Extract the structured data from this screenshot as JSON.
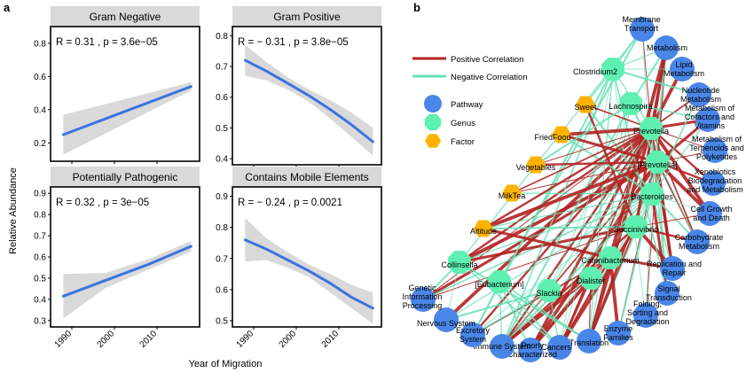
{
  "figure": {
    "panel_a_letter": "a",
    "panel_b_letter": "b",
    "x_axis_title": "Year of Migration",
    "y_axis_title": "Relative Abundance"
  },
  "chart_data": [
    {
      "type": "line",
      "title": "Gram Negative",
      "annotation": "R = 0.31   , p = 3.6e−05",
      "x": [
        1988,
        2018
      ],
      "y": [
        0.25,
        0.54
      ],
      "ci_lower": [
        0.13,
        0.515
      ],
      "ci_upper": [
        0.37,
        0.565
      ],
      "xlim": [
        1985,
        2020
      ],
      "ylim": [
        0.09,
        0.9
      ],
      "xticks": [
        1990,
        2000,
        2010
      ],
      "yticks": [
        0.2,
        0.4,
        0.6,
        0.8
      ],
      "ytick_labels": [
        "0.2",
        "0.4",
        "0.6",
        "0.8"
      ],
      "color": "#3b73e0"
    },
    {
      "type": "line",
      "title": "Gram Positive",
      "annotation": "R = − 0.31   , p = 3.8e−05",
      "x": [
        1988,
        1993,
        1998,
        2003,
        2008,
        2013,
        2018
      ],
      "y": [
        0.72,
        0.685,
        0.645,
        0.605,
        0.56,
        0.51,
        0.455
      ],
      "ci_lower": [
        0.67,
        0.655,
        0.625,
        0.585,
        0.53,
        0.47,
        0.41
      ],
      "ci_upper": [
        0.77,
        0.715,
        0.665,
        0.625,
        0.59,
        0.55,
        0.5
      ],
      "xlim": [
        1985,
        2020
      ],
      "ylim": [
        0.38,
        0.83
      ],
      "xticks": [
        1990,
        2000,
        2010
      ],
      "yticks": [
        0.4,
        0.5,
        0.6,
        0.7,
        0.8
      ],
      "ytick_labels": [
        "0.4",
        "0.5",
        "0.6",
        "0.7",
        "0.8"
      ],
      "color": "#3b73e0"
    },
    {
      "type": "line",
      "title": "Potentially Pathogenic",
      "annotation": "R = 0.32   , p = 3e−05",
      "x": [
        1988,
        1998,
        2008,
        2018
      ],
      "y": [
        0.415,
        0.49,
        0.565,
        0.65
      ],
      "ci_lower": [
        0.31,
        0.455,
        0.54,
        0.625
      ],
      "ci_upper": [
        0.52,
        0.525,
        0.59,
        0.675
      ],
      "xlim": [
        1985,
        2020
      ],
      "ylim": [
        0.27,
        0.93
      ],
      "xticks": [
        1990,
        2000,
        2010
      ],
      "yticks": [
        0.3,
        0.4,
        0.5,
        0.6,
        0.7,
        0.8,
        0.9
      ],
      "ytick_labels": [
        "0.3",
        "0.4",
        "0.5",
        "0.6",
        "0.7",
        "0.8",
        "0.9"
      ],
      "color": "#3b73e0"
    },
    {
      "type": "line",
      "title": "Contains Mobile Elements",
      "annotation": "R = − 0.24   , p = 0.0021",
      "x": [
        1988,
        1993,
        1998,
        2003,
        2008,
        2013,
        2018
      ],
      "y": [
        0.76,
        0.73,
        0.695,
        0.66,
        0.62,
        0.575,
        0.54
      ],
      "ci_lower": [
        0.69,
        0.695,
        0.67,
        0.64,
        0.59,
        0.54,
        0.49
      ],
      "ci_upper": [
        0.83,
        0.765,
        0.72,
        0.68,
        0.65,
        0.615,
        0.59
      ],
      "xlim": [
        1985,
        2020
      ],
      "ylim": [
        0.48,
        0.93
      ],
      "xticks": [
        1990,
        2000,
        2010
      ],
      "yticks": [
        0.5,
        0.6,
        0.7,
        0.8,
        0.9
      ],
      "ytick_labels": [
        "0.5",
        "0.6",
        "0.7",
        "0.8",
        "0.9"
      ],
      "color": "#3b73e0"
    }
  ],
  "network": {
    "legend": {
      "positive": "Positive Correlation",
      "negative": "Negative Correlation",
      "pathway": "Pathway",
      "genus": "Genus",
      "factor": "Factor"
    },
    "colors": {
      "positive": "#b22222",
      "negative": "#66e0b5",
      "pathway": "#4a86e8",
      "genus": "#5ef0b0",
      "factor": "#ffb300"
    },
    "nodes": [
      {
        "id": "membrane",
        "type": "pathway",
        "label": [
          "Membrane",
          "Transport"
        ]
      },
      {
        "id": "metabolism",
        "type": "pathway",
        "label": [
          "Metabolism"
        ]
      },
      {
        "id": "lipid",
        "type": "pathway",
        "label": [
          "Lipid",
          "Metabolism"
        ]
      },
      {
        "id": "nucleotide",
        "type": "pathway",
        "label": [
          "Nucleotide",
          "Metabolism"
        ]
      },
      {
        "id": "cofactors",
        "type": "pathway",
        "label": [
          "Metabolism of",
          "Cofactors and",
          "Vitamins"
        ]
      },
      {
        "id": "terpenoids",
        "type": "pathway",
        "label": [
          "Metabolism of",
          "Terpenoids and",
          "Polyketides"
        ]
      },
      {
        "id": "xenobiotics",
        "type": "pathway",
        "label": [
          "Xenobiotics",
          "Biodegradation",
          "and Metabolism"
        ]
      },
      {
        "id": "cellgrowth",
        "type": "pathway",
        "label": [
          "Cell Growth",
          "and Death"
        ]
      },
      {
        "id": "carbohydrate",
        "type": "pathway",
        "label": [
          "Carbohydrate",
          "Metabolism"
        ]
      },
      {
        "id": "replication",
        "type": "pathway",
        "label": [
          "Replication and",
          "Repair"
        ]
      },
      {
        "id": "signal",
        "type": "pathway",
        "label": [
          "Signal",
          "Transduction"
        ]
      },
      {
        "id": "folding",
        "type": "pathway",
        "label": [
          "Folding,",
          "Sorting and",
          "Degradation"
        ]
      },
      {
        "id": "enzyme",
        "type": "pathway",
        "label": [
          "Enzyme",
          "Families"
        ]
      },
      {
        "id": "translation",
        "type": "pathway",
        "label": [
          "Translation"
        ]
      },
      {
        "id": "cancers",
        "type": "pathway",
        "label": [
          "Cancers"
        ]
      },
      {
        "id": "poorly",
        "type": "pathway",
        "label": [
          "Poorly",
          "Characterized"
        ]
      },
      {
        "id": "immune",
        "type": "pathway",
        "label": [
          "Immune System"
        ]
      },
      {
        "id": "excretory",
        "type": "pathway",
        "label": [
          "Excretory",
          "System"
        ]
      },
      {
        "id": "nervous",
        "type": "pathway",
        "label": [
          "Nervous System"
        ]
      },
      {
        "id": "genetic",
        "type": "pathway",
        "label": [
          "Genetic",
          "Information",
          "Processing"
        ]
      },
      {
        "id": "clostridium2",
        "type": "genus",
        "label": [
          "Clostridium2"
        ]
      },
      {
        "id": "lachnospira",
        "type": "genus",
        "label": [
          "Lachnospira"
        ]
      },
      {
        "id": "prevotella",
        "type": "genus",
        "label": [
          "Prevotella"
        ]
      },
      {
        "id": "prevotellab",
        "type": "genus",
        "label": [
          "[Prevotella]"
        ]
      },
      {
        "id": "bacteroides",
        "type": "genus",
        "label": [
          "Bacteroides"
        ]
      },
      {
        "id": "succinivibrio",
        "type": "genus",
        "label": [
          "Succinivibrio"
        ]
      },
      {
        "id": "catenibacterium",
        "type": "genus",
        "label": [
          "Catenibacterium"
        ]
      },
      {
        "id": "dialister",
        "type": "genus",
        "label": [
          "Dialister"
        ]
      },
      {
        "id": "eubacterium",
        "type": "genus",
        "label": [
          "[Eubacterium]"
        ]
      },
      {
        "id": "slackia",
        "type": "genus",
        "label": [
          "Slackia"
        ]
      },
      {
        "id": "collinsella",
        "type": "genus",
        "label": [
          "Collinsella"
        ]
      },
      {
        "id": "sweet",
        "type": "factor",
        "label": [
          "Sweet"
        ]
      },
      {
        "id": "friedfood",
        "type": "factor",
        "label": [
          "FriedFood"
        ]
      },
      {
        "id": "vegetables",
        "type": "factor",
        "label": [
          "Vegetables"
        ]
      },
      {
        "id": "milktea",
        "type": "factor",
        "label": [
          "MilkTea"
        ]
      },
      {
        "id": "altitude",
        "type": "factor",
        "label": [
          "Altitude"
        ]
      }
    ],
    "edges": [
      [
        "prevotella",
        "membrane",
        "pos"
      ],
      [
        "prevotella",
        "metabolism",
        "pos"
      ],
      [
        "prevotella",
        "lipid",
        "pos"
      ],
      [
        "prevotella",
        "nucleotide",
        "pos"
      ],
      [
        "prevotella",
        "cofactors",
        "pos"
      ],
      [
        "prevotella",
        "terpenoids",
        "pos"
      ],
      [
        "prevotella",
        "xenobiotics",
        "pos"
      ],
      [
        "prevotella",
        "cellgrowth",
        "pos"
      ],
      [
        "prevotella",
        "carbohydrate",
        "pos"
      ],
      [
        "prevotella",
        "replication",
        "pos"
      ],
      [
        "prevotella",
        "signal",
        "neg"
      ],
      [
        "prevotella",
        "immune",
        "pos"
      ],
      [
        "prevotella",
        "translation",
        "pos"
      ],
      [
        "prevotella",
        "cancers",
        "pos"
      ],
      [
        "prevotella",
        "poorly",
        "pos"
      ],
      [
        "prevotella",
        "genetic",
        "pos"
      ],
      [
        "prevotella",
        "excretory",
        "pos"
      ],
      [
        "prevotella",
        "nervous",
        "pos"
      ],
      [
        "prevotellab",
        "metabolism",
        "pos"
      ],
      [
        "prevotellab",
        "cofactors",
        "pos"
      ],
      [
        "prevotellab",
        "terpenoids",
        "pos"
      ],
      [
        "prevotellab",
        "xenobiotics",
        "pos"
      ],
      [
        "prevotellab",
        "cellgrowth",
        "pos"
      ],
      [
        "prevotellab",
        "carbohydrate",
        "pos"
      ],
      [
        "prevotellab",
        "replication",
        "pos"
      ],
      [
        "prevotellab",
        "enzyme",
        "pos"
      ],
      [
        "prevotellab",
        "translation",
        "pos"
      ],
      [
        "prevotellab",
        "poorly",
        "pos"
      ],
      [
        "prevotellab",
        "immune",
        "pos"
      ],
      [
        "prevotellab",
        "genetic",
        "pos"
      ],
      [
        "prevotellab",
        "folding",
        "pos"
      ],
      [
        "prevotellab",
        "signal",
        "neg"
      ],
      [
        "bacteroides",
        "membrane",
        "neg"
      ],
      [
        "bacteroides",
        "metabolism",
        "neg"
      ],
      [
        "bacteroides",
        "nucleotide",
        "neg"
      ],
      [
        "bacteroides",
        "cofactors",
        "neg"
      ],
      [
        "bacteroides",
        "cellgrowth",
        "neg"
      ],
      [
        "bacteroides",
        "carbohydrate",
        "neg"
      ],
      [
        "bacteroides",
        "replication",
        "neg"
      ],
      [
        "bacteroides",
        "signal",
        "pos"
      ],
      [
        "bacteroides",
        "folding",
        "neg"
      ],
      [
        "bacteroides",
        "enzyme",
        "neg"
      ],
      [
        "bacteroides",
        "translation",
        "neg"
      ],
      [
        "bacteroides",
        "cancers",
        "neg"
      ],
      [
        "bacteroides",
        "poorly",
        "neg"
      ],
      [
        "bacteroides",
        "immune",
        "neg"
      ],
      [
        "bacteroides",
        "genetic",
        "neg"
      ],
      [
        "bacteroides",
        "nervous",
        "neg"
      ],
      [
        "bacteroides",
        "excretory",
        "neg"
      ],
      [
        "succinivibrio",
        "metabolism",
        "pos"
      ],
      [
        "succinivibrio",
        "cellgrowth",
        "pos"
      ],
      [
        "succinivibrio",
        "carbohydrate",
        "pos"
      ],
      [
        "succinivibrio",
        "replication",
        "pos"
      ],
      [
        "succinivibrio",
        "translation",
        "pos"
      ],
      [
        "succinivibrio",
        "cancers",
        "pos"
      ],
      [
        "succinivibrio",
        "genetic",
        "pos"
      ],
      [
        "succinivibrio",
        "immune",
        "pos"
      ],
      [
        "catenibacterium",
        "metabolism",
        "pos"
      ],
      [
        "catenibacterium",
        "translation",
        "pos"
      ],
      [
        "catenibacterium",
        "immune",
        "pos"
      ],
      [
        "catenibacterium",
        "poorly",
        "pos"
      ],
      [
        "catenibacterium",
        "cancers",
        "pos"
      ],
      [
        "catenibacterium",
        "enzyme",
        "pos"
      ],
      [
        "catenibacterium",
        "excretory",
        "pos"
      ],
      [
        "catenibacterium",
        "replication",
        "pos"
      ],
      [
        "dialister",
        "translation",
        "pos"
      ],
      [
        "dialister",
        "cancers",
        "pos"
      ],
      [
        "dialister",
        "poorly",
        "pos"
      ],
      [
        "dialister",
        "immune",
        "pos"
      ],
      [
        "eubacterium",
        "membrane",
        "neg"
      ],
      [
        "eubacterium",
        "translation",
        "neg"
      ],
      [
        "eubacterium",
        "immune",
        "neg"
      ],
      [
        "eubacterium",
        "excretory",
        "neg"
      ],
      [
        "eubacterium",
        "cancers",
        "neg"
      ],
      [
        "eubacterium",
        "poorly",
        "neg"
      ],
      [
        "slackia",
        "cancers",
        "neg"
      ],
      [
        "slackia",
        "immune",
        "neg"
      ],
      [
        "slackia",
        "nervous",
        "neg"
      ],
      [
        "slackia",
        "excretory",
        "neg"
      ],
      [
        "slackia",
        "prevotella",
        "neg"
      ],
      [
        "slackia",
        "lachnospira",
        "neg"
      ],
      [
        "collinsella",
        "prevotella",
        "pos"
      ],
      [
        "collinsella",
        "prevotellab",
        "pos"
      ],
      [
        "collinsella",
        "bacteroides",
        "neg"
      ],
      [
        "collinsella",
        "succinivibrio",
        "pos"
      ],
      [
        "collinsella",
        "translation",
        "neg"
      ],
      [
        "collinsella",
        "cancers",
        "neg"
      ],
      [
        "collinsella",
        "membrane",
        "neg"
      ],
      [
        "collinsella",
        "nervous",
        "neg"
      ],
      [
        "collinsella",
        "genetic",
        "neg"
      ],
      [
        "clostridium2",
        "membrane",
        "neg"
      ],
      [
        "clostridium2",
        "metabolism",
        "neg"
      ],
      [
        "clostridium2",
        "lipid",
        "neg"
      ],
      [
        "clostridium2",
        "nucleotide",
        "neg"
      ],
      [
        "clostridium2",
        "immune",
        "neg"
      ],
      [
        "clostridium2",
        "translation",
        "neg"
      ],
      [
        "clostridium2",
        "cancers",
        "neg"
      ],
      [
        "clostridium2",
        "excretory",
        "neg"
      ],
      [
        "clostridium2",
        "signal",
        "neg"
      ],
      [
        "clostridium2",
        "prevotella",
        "neg"
      ],
      [
        "clostridium2",
        "folding",
        "neg"
      ],
      [
        "lachnospira",
        "metabolism",
        "neg"
      ],
      [
        "lachnospira",
        "cofactors",
        "neg"
      ],
      [
        "lachnospira",
        "translation",
        "neg"
      ],
      [
        "lachnospira",
        "cancers",
        "neg"
      ],
      [
        "lachnospira",
        "immune",
        "neg"
      ],
      [
        "lachnospira",
        "prevotellab",
        "neg"
      ],
      [
        "lachnospira",
        "carbohydrate",
        "neg"
      ],
      [
        "sweet",
        "prevotella",
        "pos"
      ],
      [
        "sweet",
        "bacteroides",
        "neg"
      ],
      [
        "sweet",
        "clostridium2",
        "neg"
      ],
      [
        "sweet",
        "succinivibrio",
        "pos"
      ],
      [
        "friedfood",
        "prevotella",
        "pos"
      ],
      [
        "friedfood",
        "bacteroides",
        "neg"
      ],
      [
        "friedfood",
        "prevotellab",
        "pos"
      ],
      [
        "vegetables",
        "prevotella",
        "pos"
      ],
      [
        "vegetables",
        "prevotellab",
        "pos"
      ],
      [
        "vegetables",
        "lachnospira",
        "neg"
      ],
      [
        "milktea",
        "prevotella",
        "pos"
      ],
      [
        "milktea",
        "bacteroides",
        "neg"
      ],
      [
        "milktea",
        "prevotellab",
        "pos"
      ],
      [
        "altitude",
        "prevotella",
        "pos"
      ],
      [
        "altitude",
        "prevotellab",
        "pos"
      ],
      [
        "altitude",
        "bacteroides",
        "neg"
      ],
      [
        "altitude",
        "catenibacterium",
        "pos"
      ],
      [
        "altitude",
        "succinivibrio",
        "neg"
      ]
    ]
  }
}
